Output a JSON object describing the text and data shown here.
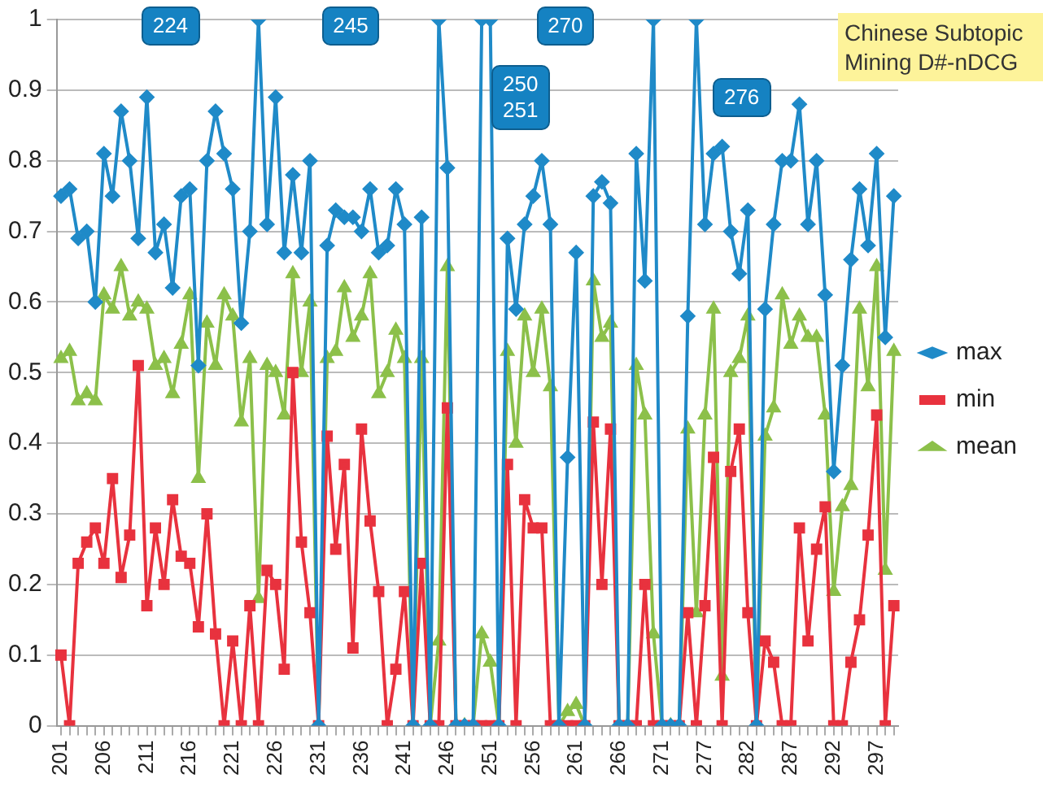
{
  "chart_data": {
    "type": "line",
    "title": "Chinese Subtopic Mining D#-nDCG",
    "categories": [
      "201",
      null,
      null,
      null,
      null,
      "206",
      null,
      null,
      null,
      null,
      "211",
      null,
      null,
      null,
      null,
      "216",
      null,
      null,
      null,
      null,
      "221",
      null,
      null,
      null,
      null,
      "226",
      null,
      null,
      null,
      null,
      "231",
      null,
      null,
      null,
      null,
      "236",
      null,
      null,
      null,
      null,
      "241",
      null,
      null,
      null,
      null,
      "246",
      null,
      null,
      null,
      null,
      "251",
      null,
      null,
      null,
      null,
      "256",
      null,
      null,
      null,
      null,
      "261",
      null,
      null,
      null,
      null,
      "266",
      null,
      null,
      null,
      null,
      "271",
      null,
      null,
      null,
      null,
      "277",
      null,
      null,
      null,
      null,
      "282",
      null,
      null,
      null,
      null,
      "287",
      null,
      null,
      null,
      null,
      "292",
      null,
      null,
      null,
      null,
      "297",
      null,
      null
    ],
    "series": [
      {
        "name": "max",
        "color": "#1f8ac8",
        "marker": "diamond",
        "values": [
          0.75,
          0.76,
          0.69,
          0.7,
          0.6,
          0.81,
          0.75,
          0.87,
          0.8,
          0.69,
          0.89,
          0.67,
          0.71,
          0.62,
          0.75,
          0.76,
          0.51,
          0.8,
          0.87,
          0.81,
          0.76,
          0.57,
          0.7,
          1,
          0.71,
          0.89,
          0.67,
          0.78,
          0.67,
          0.8,
          0,
          0.68,
          0.73,
          0.72,
          0.72,
          0.7,
          0.76,
          0.67,
          0.68,
          0.76,
          0.71,
          0,
          0.72,
          0,
          1,
          0.79,
          0,
          0,
          0,
          1,
          1,
          0,
          0.69,
          0.59,
          0.71,
          0.75,
          0.8,
          0.71,
          0,
          0.38,
          0.67,
          0,
          0.75,
          0.77,
          0.74,
          0,
          0,
          0.81,
          0.63,
          1,
          0,
          0,
          0,
          0.58,
          1,
          0.71,
          0.81,
          0.82,
          0.7,
          0.64,
          0.73,
          0,
          0.59,
          0.71,
          0.8,
          0.8,
          0.88,
          0.71,
          0.8,
          0.61,
          0.36,
          0.51,
          0.66,
          0.76,
          0.68,
          0.81,
          0.55,
          0.75
        ]
      },
      {
        "name": "min",
        "color": "#e8323e",
        "marker": "square",
        "values": [
          0.1,
          0,
          0.23,
          0.26,
          0.28,
          0.23,
          0.35,
          0.21,
          0.27,
          0.51,
          0.17,
          0.28,
          0.2,
          0.32,
          0.24,
          0.23,
          0.14,
          0.3,
          0.13,
          0,
          0.12,
          0,
          0.17,
          0,
          0.22,
          0.2,
          0.08,
          0.5,
          0.26,
          0.16,
          0,
          0.41,
          0.25,
          0.37,
          0.11,
          0.42,
          0.29,
          0.19,
          0,
          0.08,
          0.19,
          0,
          0.23,
          0,
          0,
          0.45,
          0,
          0,
          0,
          0,
          0,
          0,
          0.37,
          0,
          0.32,
          0.28,
          0.28,
          0,
          0,
          0,
          0,
          0,
          0.43,
          0.2,
          0.42,
          0,
          0,
          0,
          0.2,
          0,
          0,
          0,
          0,
          0.16,
          0,
          0.17,
          0.38,
          0,
          0.36,
          0.42,
          0.16,
          0,
          0.12,
          0.09,
          0,
          0,
          0.28,
          0.12,
          0.25,
          0.31,
          0,
          0,
          0.09,
          0.15,
          0.27,
          0.44,
          0,
          0.17
        ]
      },
      {
        "name": "mean",
        "color": "#8cc04a",
        "marker": "triangle",
        "values": [
          0.52,
          0.53,
          0.46,
          0.47,
          0.46,
          0.61,
          0.59,
          0.65,
          0.58,
          0.6,
          0.59,
          0.51,
          0.52,
          0.47,
          0.54,
          0.61,
          0.35,
          0.57,
          0.51,
          0.61,
          0.58,
          0.43,
          0.52,
          0.18,
          0.51,
          0.5,
          0.44,
          0.64,
          0.5,
          0.6,
          0,
          0.52,
          0.53,
          0.62,
          0.55,
          0.58,
          0.64,
          0.47,
          0.5,
          0.56,
          0.52,
          0,
          0.52,
          0,
          0.12,
          0.65,
          0,
          0,
          0,
          0.13,
          0.09,
          0,
          0.53,
          0.4,
          0.58,
          0.5,
          0.59,
          0.48,
          0,
          0.02,
          0.03,
          0,
          0.63,
          0.55,
          0.57,
          0,
          0,
          0.51,
          0.44,
          0.13,
          0,
          0,
          0,
          0.42,
          0.16,
          0.44,
          0.59,
          0.07,
          0.5,
          0.52,
          0.58,
          0,
          0.41,
          0.45,
          0.61,
          0.54,
          0.58,
          0.55,
          0.55,
          0.44,
          0.19,
          0.31,
          0.34,
          0.59,
          0.48,
          0.65,
          0.22,
          0.53
        ]
      }
    ],
    "annotations": [
      "224",
      "245",
      "250\n251",
      "270",
      "276"
    ],
    "ylim": [
      0,
      1
    ],
    "yticks": [
      0,
      0.1,
      0.2,
      0.3,
      0.4,
      0.5,
      0.6,
      0.7,
      0.8,
      0.9,
      1
    ],
    "grid": "y",
    "legend": "right"
  }
}
